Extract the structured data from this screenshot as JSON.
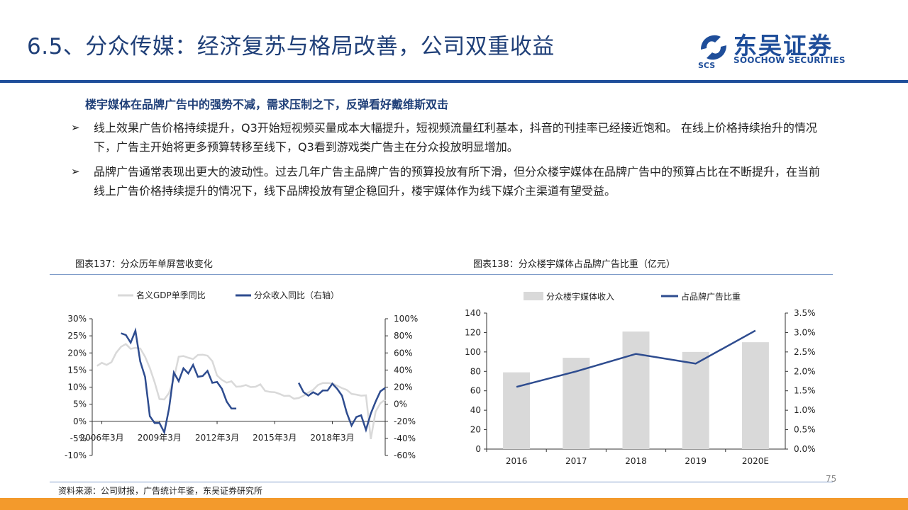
{
  "header": {
    "title": "6.5、分众传媒：经济复苏与格局改善，公司双重收益",
    "logo_cn": "东吴证券",
    "logo_en": "SOOCHOW SECURITIES",
    "logo_mark": "SCS"
  },
  "content": {
    "heading_marker": "",
    "heading": "楼宇媒体在品牌广告中的强势不减，需求压制之下，反弹看好戴维斯双击",
    "arrow": "➢",
    "points": [
      "线上效果广告价格持续提升，Q3开始短视频买量成本大幅提升，短视频流量红利基本，抖音的刊挂率已经接近饱和。 在线上价格持续抬升的情况下，广告主开始将更多预算转移至线下，Q3看到游戏类广告主在分众投放明显增加。",
      "品牌广告通常表现出更大的波动性。过去几年广告主品牌广告的预算投放有所下滑，但分众楼宇媒体在品牌广告中的预算占比在不断提升，在当前线上广告价格持续提升的情况下，线下品牌投放有望企稳回升，楼宇媒体作为线下媒介主渠道有望受益。"
    ]
  },
  "figures": {
    "left_caption": "图表137：分众历年单屏营收变化",
    "right_caption": "图表138：分众楼宇媒体占品牌广告比重（亿元）"
  },
  "footer": {
    "source": "资料来源：公司财报，广告统计年鉴，东吴证券研究所",
    "page": "75"
  },
  "colors": {
    "title": "#1f3f78",
    "rule": "#1f4e9a",
    "gray_series": "#d9d9d9",
    "blue_series": "#2e4c8f",
    "bar": "#d9d9d9",
    "accent_bar": "#f39a2c"
  },
  "chart_data": [
    {
      "type": "line",
      "legend_position": "top",
      "series": [
        {
          "name": "名义GDP单季同比",
          "axis": "left"
        },
        {
          "name": "分众收入同比（右轴）",
          "axis": "right"
        }
      ],
      "x_tick_labels": [
        "2006年3月",
        "2009年3月",
        "2012年3月",
        "2015年3月",
        "2018年3月"
      ],
      "y_left": {
        "ticks": [
          "30%",
          "25%",
          "20%",
          "15%",
          "10%",
          "5%",
          "0%",
          "-5%",
          "-10%"
        ],
        "range": [
          -10,
          30
        ]
      },
      "y_right": {
        "ticks": [
          "100%",
          "80%",
          "60%",
          "40%",
          "20%",
          "0%",
          "-20%",
          "-40%",
          "-60%"
        ],
        "range": [
          -60,
          100
        ]
      },
      "x_range": [
        2005.5,
        2020.75
      ],
      "gdp_series": {
        "x": [
          2005.75,
          2006,
          2006.25,
          2006.5,
          2006.75,
          2007,
          2007.25,
          2007.5,
          2007.75,
          2008,
          2008.25,
          2008.5,
          2008.75,
          2009,
          2009.25,
          2009.5,
          2009.75,
          2010,
          2010.25,
          2010.5,
          2010.75,
          2011,
          2011.25,
          2011.5,
          2011.75,
          2012,
          2012.25,
          2012.5,
          2012.75,
          2013,
          2013.25,
          2013.5,
          2013.75,
          2014,
          2014.25,
          2014.5,
          2014.75,
          2015,
          2015.25,
          2015.5,
          2015.75,
          2016,
          2016.25,
          2016.5,
          2016.75,
          2017,
          2017.25,
          2017.5,
          2017.75,
          2018,
          2018.25,
          2018.5,
          2018.75,
          2019,
          2019.25,
          2019.5,
          2019.75,
          2020,
          2020.25,
          2020.5,
          2020.75
        ],
        "y": [
          16.2,
          17.1,
          16.5,
          17.3,
          20.1,
          21.8,
          22.6,
          21.2,
          21.5,
          21.3,
          18.9,
          15.6,
          11.4,
          6.5,
          6.4,
          8.3,
          12.5,
          18.9,
          19.1,
          18.6,
          18.2,
          19.4,
          19.5,
          19.2,
          17.6,
          13.4,
          12.1,
          11.3,
          11.7,
          10.1,
          10.2,
          10.6,
          10.0,
          10.1,
          10.8,
          8.9,
          8.6,
          8.5,
          8.0,
          7.4,
          7.5,
          6.6,
          6.8,
          7.5,
          8.4,
          9.2,
          10.6,
          11.2,
          11.2,
          11.1,
          10.4,
          9.7,
          9.2,
          8.0,
          7.8,
          7.5,
          7.6,
          -5.2,
          2.8,
          5.3,
          6.3
        ]
      },
      "revenue_series": {
        "x": [
          2007,
          2007.25,
          2007.5,
          2007.75,
          2008,
          2008.25,
          2008.5,
          2008.75,
          2009,
          2009.25,
          2009.5,
          2009.75,
          2010,
          2010.25,
          2010.5,
          2010.75,
          2011,
          2011.25,
          2011.5,
          2011.75,
          2012,
          2012.25,
          2012.5,
          2012.75,
          2013,
          2016.25,
          2016.5,
          2016.75,
          2017,
          2017.25,
          2017.5,
          2017.75,
          2018,
          2018.25,
          2018.5,
          2018.75,
          2019,
          2019.25,
          2019.5,
          2019.75,
          2020,
          2020.25,
          2020.5,
          2020.75
        ],
        "y": [
          83,
          81,
          72,
          86,
          50,
          32,
          -14,
          -22,
          -22,
          -33,
          -5,
          37,
          27,
          42,
          36,
          46,
          32,
          33,
          39,
          25,
          26,
          18,
          3,
          -5,
          -5,
          25,
          14,
          10,
          14,
          11,
          16,
          16,
          24,
          18,
          10,
          -10,
          -25,
          -15,
          -13,
          -30,
          -11,
          3,
          15,
          19
        ]
      }
    },
    {
      "type": "bar",
      "legend_position": "top",
      "categories": [
        "2016",
        "2017",
        "2018",
        "2019",
        "2020E"
      ],
      "series": [
        {
          "name": "分众楼宇媒体收入",
          "type": "bar",
          "axis": "left",
          "values": [
            79,
            94,
            121,
            100,
            110
          ]
        },
        {
          "name": "占品牌广告比重",
          "type": "line",
          "axis": "right",
          "values": [
            1.6,
            2.0,
            2.45,
            2.2,
            3.05
          ]
        }
      ],
      "y_left": {
        "ticks": [
          "140",
          "120",
          "100",
          "80",
          "60",
          "40",
          "20",
          "0"
        ],
        "range": [
          0,
          140
        ]
      },
      "y_right": {
        "ticks": [
          "3.5%",
          "3.0%",
          "2.5%",
          "2.0%",
          "1.5%",
          "1.0%",
          "0.5%",
          "0.0%"
        ],
        "range": [
          0,
          3.5
        ]
      }
    }
  ]
}
